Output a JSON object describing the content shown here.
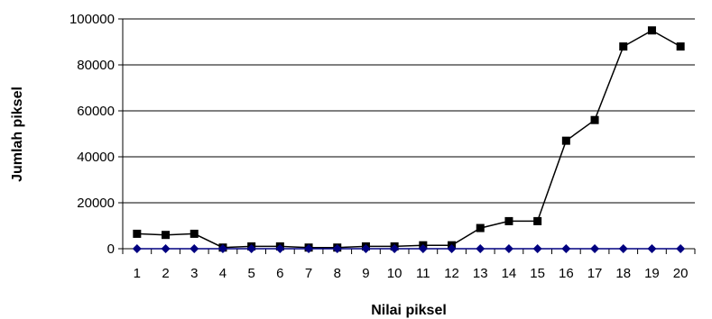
{
  "chart_data": {
    "type": "line",
    "title": "",
    "xlabel": "Nilai piksel",
    "ylabel": "Jumlah piksel",
    "categories": [
      "1",
      "2",
      "3",
      "4",
      "5",
      "6",
      "7",
      "8",
      "9",
      "10",
      "11",
      "12",
      "13",
      "14",
      "15",
      "16",
      "17",
      "18",
      "19",
      "20"
    ],
    "ylim": [
      0,
      100000
    ],
    "yticks": [
      0,
      20000,
      40000,
      60000,
      80000,
      100000
    ],
    "grid": true,
    "legend": "none",
    "series": [
      {
        "marker": "square",
        "color": "#000000",
        "values": [
          6500,
          6000,
          6500,
          500,
          1000,
          1000,
          500,
          500,
          1000,
          1000,
          1500,
          1500,
          9000,
          12000,
          12000,
          47000,
          56000,
          88000,
          95000,
          88000
        ]
      },
      {
        "marker": "diamond",
        "color": "#000080",
        "values": [
          0,
          0,
          0,
          0,
          0,
          0,
          0,
          0,
          0,
          0,
          0,
          0,
          0,
          0,
          0,
          0,
          0,
          0,
          0,
          0
        ]
      }
    ]
  }
}
